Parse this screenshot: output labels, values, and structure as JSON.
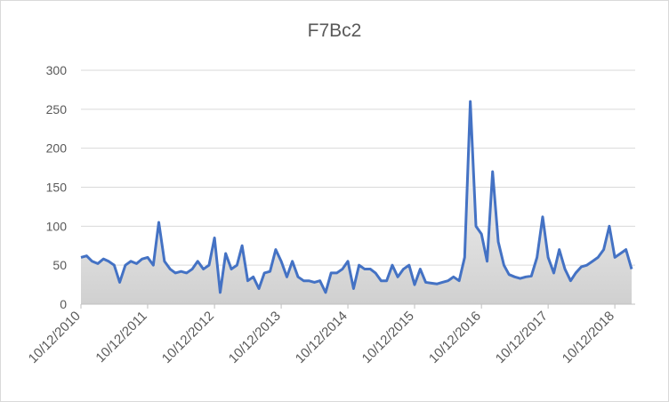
{
  "chart_data": {
    "type": "area",
    "title": "F7Bc2",
    "x": [
      "2010-10-12",
      "2010-11-12",
      "2010-12-12",
      "2011-01-12",
      "2011-02-12",
      "2011-03-12",
      "2011-04-12",
      "2011-05-12",
      "2011-06-12",
      "2011-07-12",
      "2011-08-12",
      "2011-09-12",
      "2011-10-12",
      "2011-11-12",
      "2011-12-12",
      "2012-01-12",
      "2012-02-12",
      "2012-03-12",
      "2012-04-12",
      "2012-05-12",
      "2012-06-12",
      "2012-07-12",
      "2012-08-12",
      "2012-09-12",
      "2012-10-12",
      "2012-11-12",
      "2012-12-12",
      "2013-01-12",
      "2013-02-12",
      "2013-03-12",
      "2013-04-12",
      "2013-05-12",
      "2013-06-12",
      "2013-07-12",
      "2013-08-12",
      "2013-09-12",
      "2013-10-12",
      "2013-11-12",
      "2013-12-12",
      "2014-01-12",
      "2014-02-12",
      "2014-03-12",
      "2014-04-12",
      "2014-05-12",
      "2014-06-12",
      "2014-07-12",
      "2014-08-12",
      "2014-09-12",
      "2014-10-12",
      "2014-11-12",
      "2014-12-12",
      "2015-01-12",
      "2015-02-12",
      "2015-03-12",
      "2015-04-12",
      "2015-05-12",
      "2015-06-12",
      "2015-07-12",
      "2015-08-12",
      "2015-09-12",
      "2015-10-12",
      "2015-11-12",
      "2015-12-12",
      "2016-01-12",
      "2016-02-12",
      "2016-03-12",
      "2016-04-12",
      "2016-05-12",
      "2016-06-12",
      "2016-07-12",
      "2016-08-12",
      "2016-09-12",
      "2016-10-12",
      "2016-11-12",
      "2016-12-12",
      "2017-01-12",
      "2017-02-12",
      "2017-03-12",
      "2017-04-12",
      "2017-05-12",
      "2017-06-12",
      "2017-07-12",
      "2017-08-12",
      "2017-09-12",
      "2017-10-12",
      "2017-11-12",
      "2017-12-12",
      "2018-01-12",
      "2018-02-12",
      "2018-03-12",
      "2018-04-12",
      "2018-05-12",
      "2018-06-12",
      "2018-07-12",
      "2018-08-12",
      "2018-09-12",
      "2018-10-12",
      "2018-11-12",
      "2018-12-12",
      "2019-01-12"
    ],
    "values": [
      60,
      62,
      55,
      52,
      58,
      55,
      50,
      28,
      50,
      55,
      52,
      58,
      60,
      50,
      105,
      55,
      45,
      40,
      42,
      40,
      45,
      55,
      45,
      50,
      85,
      15,
      65,
      45,
      50,
      75,
      30,
      35,
      20,
      40,
      42,
      70,
      55,
      35,
      55,
      35,
      30,
      30,
      28,
      30,
      15,
      40,
      40,
      45,
      55,
      20,
      50,
      45,
      45,
      40,
      30,
      30,
      50,
      35,
      45,
      50,
      25,
      45,
      28,
      27,
      26,
      28,
      30,
      35,
      30,
      60,
      260,
      100,
      90,
      55,
      170,
      80,
      50,
      38,
      35,
      33,
      35,
      36,
      60,
      112,
      60,
      40,
      70,
      45,
      30,
      40,
      48,
      50,
      55,
      60,
      70,
      100,
      60,
      65,
      70,
      45
    ],
    "color": "#4472c4",
    "xlim": [
      "2010-10-12",
      "2019-01-12"
    ],
    "xticks": [
      {
        "value": "2010-10-12",
        "label": "10/12/2010"
      },
      {
        "value": "2011-10-12",
        "label": "10/12/2011"
      },
      {
        "value": "2012-10-12",
        "label": "10/12/2012"
      },
      {
        "value": "2013-10-12",
        "label": "10/12/2013"
      },
      {
        "value": "2014-10-12",
        "label": "10/12/2014"
      },
      {
        "value": "2015-10-12",
        "label": "10/12/2015"
      },
      {
        "value": "2016-10-12",
        "label": "10/12/2016"
      },
      {
        "value": "2017-10-12",
        "label": "10/12/2017"
      },
      {
        "value": "2018-10-12",
        "label": "10/12/2018"
      }
    ],
    "ylim": [
      0,
      300
    ],
    "yticks": [
      0,
      50,
      100,
      150,
      200,
      250,
      300
    ],
    "grid": true
  }
}
